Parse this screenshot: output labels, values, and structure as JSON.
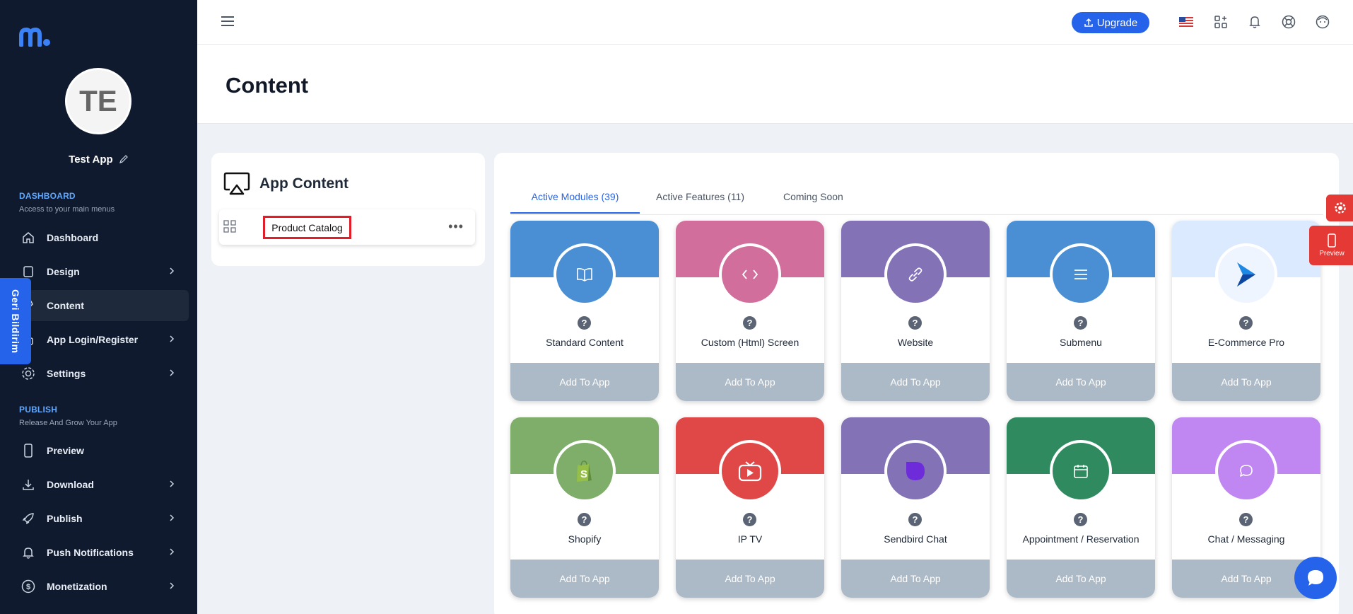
{
  "sidebar": {
    "avatar_initials": "TE",
    "app_name": "Test App",
    "dashboard_section": {
      "title": "DASHBOARD",
      "subtitle": "Access to your main menus"
    },
    "dashboard_items": [
      {
        "label": "Dashboard",
        "icon": "home-icon",
        "chevron": false
      },
      {
        "label": "Design",
        "icon": "design-icon",
        "chevron": true
      },
      {
        "label": "Content",
        "icon": "content-icon",
        "chevron": false,
        "active": true
      },
      {
        "label": "App Login/Register",
        "icon": "login-icon",
        "chevron": true
      },
      {
        "label": "Settings",
        "icon": "gear-icon",
        "chevron": true
      }
    ],
    "publish_section": {
      "title": "PUBLISH",
      "subtitle": "Release And Grow Your App"
    },
    "publish_items": [
      {
        "label": "Preview",
        "icon": "phone-icon",
        "chevron": false
      },
      {
        "label": "Download",
        "icon": "download-icon",
        "chevron": true
      },
      {
        "label": "Publish",
        "icon": "rocket-icon",
        "chevron": true
      },
      {
        "label": "Push Notifications",
        "icon": "bell-icon",
        "chevron": true
      },
      {
        "label": "Monetization",
        "icon": "dollar-icon",
        "chevron": true
      }
    ]
  },
  "feedback_tab": "Geri Bildirim",
  "topbar": {
    "upgrade_label": "Upgrade"
  },
  "page": {
    "title": "Content"
  },
  "app_content": {
    "title": "App Content",
    "items": [
      {
        "label": "Product Catalog"
      }
    ]
  },
  "tabs": [
    {
      "label": "Active Modules (39)",
      "active": true
    },
    {
      "label": "Active Features (11)",
      "active": false
    },
    {
      "label": "Coming Soon",
      "active": false
    }
  ],
  "modules": [
    {
      "name": "Standard Content",
      "color": "#4a8fd4",
      "icon": "book-icon"
    },
    {
      "name": "Custom (Html) Screen",
      "color": "#d16e9c",
      "icon": "code-icon"
    },
    {
      "name": "Website",
      "color": "#8372b6",
      "icon": "link-icon"
    },
    {
      "name": "Submenu",
      "color": "#4a8fd4",
      "icon": "menu-lines-icon"
    },
    {
      "name": "E-Commerce Pro",
      "color": "#dbeafe",
      "icon": "ecommerce-arrow-icon"
    },
    {
      "name": "Shopify",
      "color": "#7fae6b",
      "icon": "shopify-bag-icon"
    },
    {
      "name": "IP TV",
      "color": "#e04848",
      "icon": "tv-play-icon"
    },
    {
      "name": "Sendbird Chat",
      "color": "#8372b6",
      "icon": "sendbird-icon"
    },
    {
      "name": "Appointment / Reservation",
      "color": "#2f8a60",
      "icon": "calendar-icon"
    },
    {
      "name": "Chat / Messaging",
      "color": "#c086f2",
      "icon": "chat-icon"
    }
  ],
  "add_button_label": "Add To App",
  "floating": {
    "preview_label": "Preview"
  }
}
